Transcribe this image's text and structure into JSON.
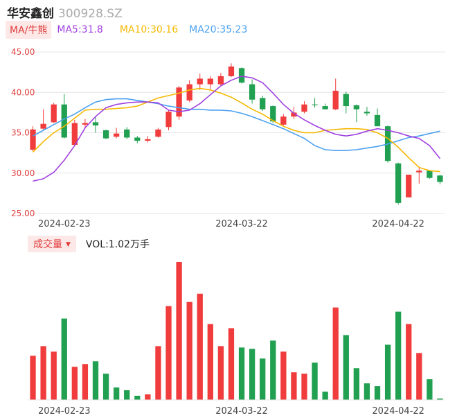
{
  "header": {
    "name": "华安鑫创",
    "code": "300928.SZ"
  },
  "ma_bar": {
    "selector": "MA/牛熊",
    "ma5": "MA5:31.8",
    "ma10": "MA10:30.16",
    "ma20": "MA20:35.23"
  },
  "volume_bar": {
    "selector": "成交量",
    "vol": "VOL:1.02万手"
  },
  "colors": {
    "up": "#f03c3c",
    "down": "#20a050",
    "ma5": "#a040e0",
    "ma10": "#f5b800",
    "ma20": "#4aa0f0",
    "axis_text": "#e04040"
  },
  "chart_data": [
    {
      "type": "candlestick",
      "y_ticks": [
        "45.00",
        "40.00",
        "35.00",
        "30.00",
        "25.00"
      ],
      "ylim": [
        25,
        45
      ],
      "x_tick_labels": [
        "2024-02-23",
        "2024-03-22",
        "2024-04-22"
      ],
      "x_tick_index": [
        3,
        20,
        35
      ],
      "candles": [
        {
          "o": 32.9,
          "h": 35.8,
          "l": 32.7,
          "c": 35.4
        },
        {
          "o": 35.5,
          "h": 37.9,
          "l": 35.4,
          "c": 36.1
        },
        {
          "o": 36.3,
          "h": 38.7,
          "l": 36.2,
          "c": 38.5
        },
        {
          "o": 38.5,
          "h": 39.8,
          "l": 34.3,
          "c": 34.4
        },
        {
          "o": 33.5,
          "h": 36.6,
          "l": 33.4,
          "c": 36.2
        },
        {
          "o": 36.0,
          "h": 36.7,
          "l": 35.6,
          "c": 36.2
        },
        {
          "o": 36.3,
          "h": 37.0,
          "l": 35.0,
          "c": 35.9
        },
        {
          "o": 35.3,
          "h": 35.4,
          "l": 34.2,
          "c": 34.3
        },
        {
          "o": 34.5,
          "h": 35.6,
          "l": 34.3,
          "c": 34.9
        },
        {
          "o": 35.4,
          "h": 35.7,
          "l": 34.2,
          "c": 34.4
        },
        {
          "o": 34.4,
          "h": 34.6,
          "l": 33.7,
          "c": 34.0
        },
        {
          "o": 34.0,
          "h": 34.6,
          "l": 33.8,
          "c": 34.2
        },
        {
          "o": 34.5,
          "h": 35.6,
          "l": 34.4,
          "c": 35.4
        },
        {
          "o": 35.7,
          "h": 37.8,
          "l": 35.3,
          "c": 37.6
        },
        {
          "o": 37.0,
          "h": 40.8,
          "l": 36.6,
          "c": 40.6
        },
        {
          "o": 39.0,
          "h": 41.5,
          "l": 38.8,
          "c": 41.0
        },
        {
          "o": 41.0,
          "h": 42.3,
          "l": 40.3,
          "c": 41.7
        },
        {
          "o": 41.0,
          "h": 42.0,
          "l": 40.4,
          "c": 41.7
        },
        {
          "o": 41.0,
          "h": 42.4,
          "l": 40.8,
          "c": 42.0
        },
        {
          "o": 42.0,
          "h": 43.6,
          "l": 41.9,
          "c": 43.2
        },
        {
          "o": 43.0,
          "h": 43.1,
          "l": 41.1,
          "c": 41.2
        },
        {
          "o": 41.0,
          "h": 41.6,
          "l": 38.6,
          "c": 39.1
        },
        {
          "o": 39.3,
          "h": 39.6,
          "l": 37.7,
          "c": 37.9
        },
        {
          "o": 38.3,
          "h": 38.4,
          "l": 36.2,
          "c": 36.4
        },
        {
          "o": 36.0,
          "h": 37.3,
          "l": 35.9,
          "c": 37.0
        },
        {
          "o": 37.0,
          "h": 38.2,
          "l": 36.7,
          "c": 37.5
        },
        {
          "o": 37.6,
          "h": 38.9,
          "l": 37.4,
          "c": 38.5
        },
        {
          "o": 38.5,
          "h": 39.3,
          "l": 38.1,
          "c": 38.4
        },
        {
          "o": 38.3,
          "h": 38.6,
          "l": 37.9,
          "c": 37.9
        },
        {
          "o": 37.9,
          "h": 41.7,
          "l": 37.8,
          "c": 40.2
        },
        {
          "o": 39.8,
          "h": 40.1,
          "l": 37.4,
          "c": 38.3
        },
        {
          "o": 38.4,
          "h": 38.5,
          "l": 36.3,
          "c": 37.9
        },
        {
          "o": 37.6,
          "h": 38.2,
          "l": 37.1,
          "c": 37.4
        },
        {
          "o": 37.2,
          "h": 38.0,
          "l": 35.9,
          "c": 35.8
        },
        {
          "o": 35.8,
          "h": 35.9,
          "l": 31.3,
          "c": 31.5
        },
        {
          "o": 31.2,
          "h": 31.3,
          "l": 26.1,
          "c": 26.3
        },
        {
          "o": 27.0,
          "h": 29.8,
          "l": 27.0,
          "c": 29.8
        },
        {
          "o": 30.1,
          "h": 30.8,
          "l": 28.7,
          "c": 30.3
        },
        {
          "o": 30.3,
          "h": 30.4,
          "l": 29.3,
          "c": 29.4
        },
        {
          "o": 29.7,
          "h": 29.8,
          "l": 28.6,
          "c": 28.9
        }
      ],
      "ma5": [
        29.0,
        29.3,
        30.1,
        31.6,
        33.4,
        35.6,
        37.0,
        38.1,
        38.5,
        38.7,
        38.8,
        38.8,
        38.7,
        37.8,
        37.6,
        37.8,
        38.6,
        39.7,
        40.8,
        41.5,
        42.0,
        41.8,
        41.2,
        39.9,
        38.5,
        37.4,
        36.6,
        35.9,
        35.3,
        34.8,
        34.6,
        34.8,
        35.2,
        35.5,
        35.3,
        35.0,
        34.6,
        34.3,
        33.4,
        31.8
      ],
      "ma10": [
        32.6,
        33.9,
        35.0,
        35.8,
        36.8,
        37.8,
        37.9,
        37.9,
        38.0,
        38.1,
        38.3,
        38.8,
        39.3,
        39.6,
        39.9,
        40.3,
        40.5,
        40.3,
        39.9,
        39.4,
        38.7,
        37.9,
        37.3,
        36.5,
        35.8,
        35.3,
        35.0,
        35.0,
        35.3,
        35.4,
        35.5,
        35.5,
        35.4,
        35.0,
        34.3,
        33.2,
        31.9,
        30.7,
        30.3,
        30.2
      ],
      "ma20": [
        34.6,
        35.3,
        36.0,
        36.7,
        37.3,
        38.1,
        38.8,
        39.1,
        39.2,
        39.2,
        39.0,
        38.8,
        38.6,
        38.3,
        38.1,
        37.9,
        37.9,
        37.8,
        37.8,
        37.7,
        37.4,
        37.0,
        36.5,
        36.0,
        35.5,
        34.9,
        34.3,
        33.4,
        32.9,
        32.8,
        32.8,
        32.9,
        33.1,
        33.3,
        33.6,
        34.0,
        34.4,
        34.6,
        34.9,
        35.2
      ],
      "partial_visible": "last MA20 value matches MA20:35.23"
    },
    {
      "type": "bar",
      "title": "成交量",
      "x_tick_labels": [
        "2024-02-23",
        "2024-03-22",
        "2024-04-22"
      ],
      "values": [
        0.32,
        0.39,
        0.35,
        0.59,
        0.24,
        0.26,
        0.28,
        0.19,
        0.09,
        0.07,
        0.03,
        0.04,
        0.39,
        0.68,
        1.0,
        0.71,
        0.77,
        0.55,
        0.39,
        0.52,
        0.38,
        0.37,
        0.3,
        0.43,
        0.35,
        0.2,
        0.19,
        0.27,
        0.06,
        0.67,
        0.47,
        0.23,
        0.12,
        0.1,
        0.4,
        0.64,
        0.55,
        0.34,
        0.15,
        0.01
      ],
      "up": [
        true,
        true,
        true,
        false,
        true,
        true,
        false,
        false,
        false,
        false,
        false,
        true,
        true,
        true,
        true,
        true,
        true,
        true,
        true,
        true,
        false,
        false,
        false,
        false,
        true,
        true,
        true,
        false,
        false,
        true,
        false,
        false,
        false,
        false,
        false,
        false,
        true,
        true,
        false,
        false
      ]
    }
  ]
}
